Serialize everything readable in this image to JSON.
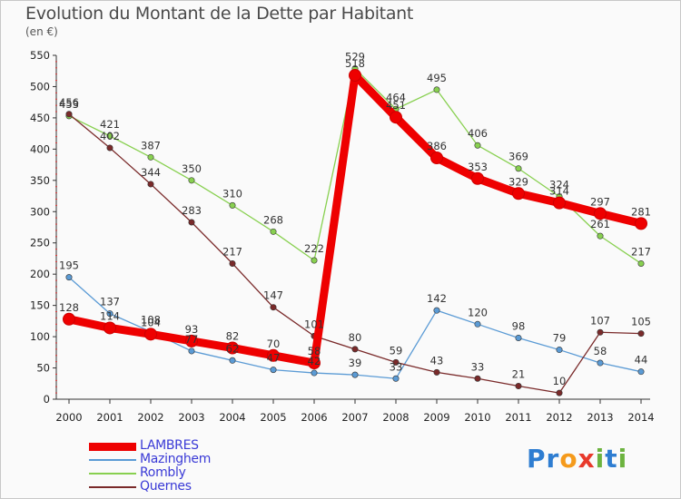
{
  "title": "Evolution du Montant de la Dette par Habitant",
  "subtitle": "(en €)",
  "logo": {
    "letters": [
      "P",
      "r",
      "o",
      "x",
      "i",
      "t",
      "i"
    ],
    "colors": [
      "#2e7dd1",
      "#2e7dd1",
      "#f59a1b",
      "#e8392b",
      "#6cb33f",
      "#2e7dd1",
      "#6cb33f"
    ]
  },
  "chart_data": {
    "type": "line",
    "title": "Evolution du Montant de la Dette par Habitant",
    "ylabel": "(en €)",
    "xlabel": "",
    "x": [
      "2000",
      "2001",
      "2002",
      "2003",
      "2004",
      "2005",
      "2006",
      "2007",
      "2008",
      "2009",
      "2010",
      "2011",
      "2012",
      "2013",
      "2014"
    ],
    "ylim": [
      0,
      550
    ],
    "yticks": [
      0,
      50,
      100,
      150,
      200,
      250,
      300,
      350,
      400,
      450,
      500,
      550
    ],
    "grid": false,
    "legend": "bottom-left",
    "series": [
      {
        "name": "LAMBRES",
        "color": "#ee0000",
        "values": [
          128,
          114,
          104,
          93,
          82,
          70,
          58,
          518,
          451,
          386,
          353,
          329,
          314,
          297,
          281
        ]
      },
      {
        "name": "Mazinghem",
        "color": "#5b9bd5",
        "values": [
          195,
          137,
          108,
          77,
          62,
          47,
          42,
          39,
          33,
          142,
          120,
          98,
          79,
          58,
          44
        ]
      },
      {
        "name": "Rombly",
        "color": "#88d050",
        "values": [
          453,
          421,
          387,
          350,
          310,
          268,
          222,
          529,
          464,
          495,
          406,
          369,
          324,
          261,
          217
        ]
      },
      {
        "name": "Quernes",
        "color": "#7a2a2a",
        "values": [
          456,
          402,
          344,
          283,
          217,
          147,
          101,
          80,
          59,
          43,
          33,
          21,
          10,
          107,
          105
        ]
      }
    ]
  }
}
